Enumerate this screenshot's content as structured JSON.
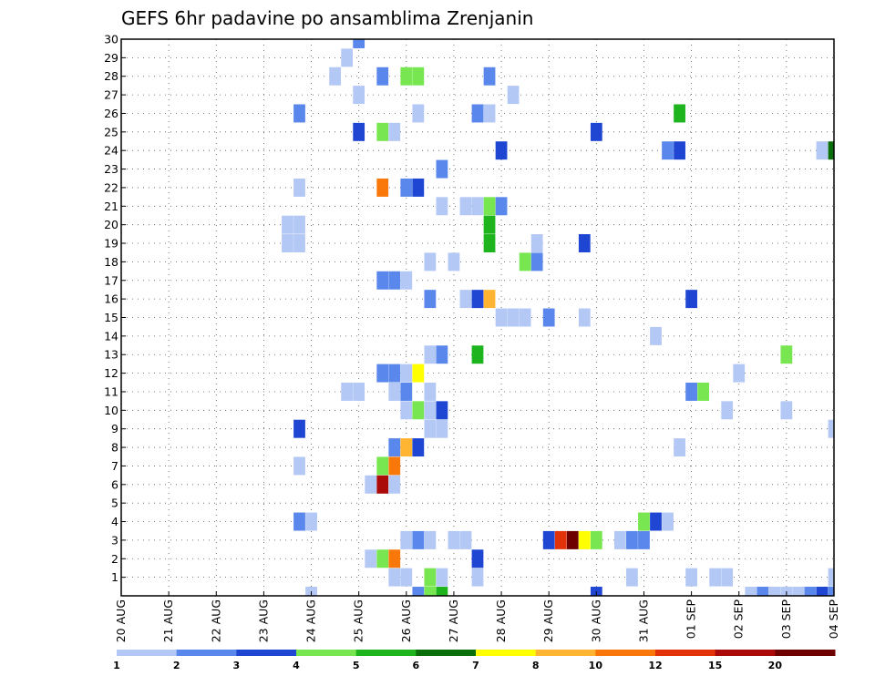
{
  "chart_data": {
    "type": "heatmap",
    "title": "GEFS 6hr padavine po ansamblima Zrenjanin",
    "xlabel": "",
    "ylabel": "",
    "x_ticks": [
      "20 AUG",
      "21 AUG",
      "22 AUG",
      "23 AUG",
      "24 AUG",
      "25 AUG",
      "26 AUG",
      "27 AUG",
      "28 AUG",
      "29 AUG",
      "30 AUG",
      "31 AUG",
      "01 SEP",
      "02 SEP",
      "03 SEP",
      "04 SEP"
    ],
    "y_ticks": [
      1,
      2,
      3,
      4,
      5,
      6,
      7,
      8,
      9,
      10,
      11,
      12,
      13,
      14,
      15,
      16,
      17,
      18,
      19,
      20,
      21,
      22,
      23,
      24,
      25,
      26,
      27,
      28,
      29,
      30
    ],
    "xlim": [
      0,
      60
    ],
    "ylim": [
      0,
      30
    ],
    "x_units": "6-hour steps from 20 AUG 00Z",
    "grid": true,
    "legend": {
      "placement": "bottom",
      "levels": [
        "1",
        "2",
        "3",
        "4",
        "5",
        "6",
        "7",
        "8",
        "10",
        "12",
        "15",
        "20"
      ],
      "colors": [
        "#b4c8f5",
        "#5a87eb",
        "#1e46d2",
        "#78e650",
        "#1eb41e",
        "#0a6e0a",
        "#ffff00",
        "#ffb432",
        "#fa780a",
        "#e1320a",
        "#aa0a0a",
        "#6e0000"
      ]
    },
    "cells": [
      {
        "x": 20,
        "y": 30,
        "c": 1
      },
      {
        "x": 19,
        "y": 29,
        "c": 0
      },
      {
        "x": 18,
        "y": 28,
        "c": 0
      },
      {
        "x": 22,
        "y": 28,
        "c": 1
      },
      {
        "x": 24,
        "y": 28,
        "c": 3
      },
      {
        "x": 25,
        "y": 28,
        "c": 3
      },
      {
        "x": 31,
        "y": 28,
        "c": 1
      },
      {
        "x": 20,
        "y": 27,
        "c": 0
      },
      {
        "x": 33,
        "y": 27,
        "c": 0
      },
      {
        "x": 15,
        "y": 26,
        "c": 1
      },
      {
        "x": 25,
        "y": 26,
        "c": 0
      },
      {
        "x": 30,
        "y": 26,
        "c": 1
      },
      {
        "x": 31,
        "y": 26,
        "c": 0
      },
      {
        "x": 47,
        "y": 26,
        "c": 4
      },
      {
        "x": 20,
        "y": 25,
        "c": 2
      },
      {
        "x": 22,
        "y": 25,
        "c": 3
      },
      {
        "x": 23,
        "y": 25,
        "c": 0
      },
      {
        "x": 40,
        "y": 25,
        "c": 2
      },
      {
        "x": 32,
        "y": 24,
        "c": 2
      },
      {
        "x": 46,
        "y": 24,
        "c": 1
      },
      {
        "x": 47,
        "y": 24,
        "c": 2
      },
      {
        "x": 59,
        "y": 24,
        "c": 0
      },
      {
        "x": 60,
        "y": 24,
        "c": 5
      },
      {
        "x": 27,
        "y": 23,
        "c": 1
      },
      {
        "x": 15,
        "y": 22,
        "c": 0
      },
      {
        "x": 22,
        "y": 22,
        "c": 8
      },
      {
        "x": 24,
        "y": 22,
        "c": 1
      },
      {
        "x": 25,
        "y": 22,
        "c": 2
      },
      {
        "x": 27,
        "y": 21,
        "c": 0
      },
      {
        "x": 29,
        "y": 21,
        "c": 0
      },
      {
        "x": 30,
        "y": 21,
        "c": 0
      },
      {
        "x": 31,
        "y": 21,
        "c": 3
      },
      {
        "x": 32,
        "y": 21,
        "c": 1
      },
      {
        "x": 14,
        "y": 20,
        "c": 0
      },
      {
        "x": 15,
        "y": 20,
        "c": 0
      },
      {
        "x": 31,
        "y": 20,
        "c": 4
      },
      {
        "x": 14,
        "y": 19,
        "c": 0
      },
      {
        "x": 15,
        "y": 19,
        "c": 0
      },
      {
        "x": 31,
        "y": 19,
        "c": 4
      },
      {
        "x": 35,
        "y": 19,
        "c": 0
      },
      {
        "x": 39,
        "y": 19,
        "c": 2
      },
      {
        "x": 26,
        "y": 18,
        "c": 0
      },
      {
        "x": 28,
        "y": 18,
        "c": 0
      },
      {
        "x": 34,
        "y": 18,
        "c": 3
      },
      {
        "x": 35,
        "y": 18,
        "c": 1
      },
      {
        "x": 22,
        "y": 17,
        "c": 1
      },
      {
        "x": 23,
        "y": 17,
        "c": 1
      },
      {
        "x": 24,
        "y": 17,
        "c": 0
      },
      {
        "x": 26,
        "y": 16,
        "c": 1
      },
      {
        "x": 29,
        "y": 16,
        "c": 0
      },
      {
        "x": 30,
        "y": 16,
        "c": 2
      },
      {
        "x": 31,
        "y": 16,
        "c": 7
      },
      {
        "x": 48,
        "y": 16,
        "c": 2
      },
      {
        "x": 32,
        "y": 15,
        "c": 0
      },
      {
        "x": 33,
        "y": 15,
        "c": 0
      },
      {
        "x": 34,
        "y": 15,
        "c": 0
      },
      {
        "x": 36,
        "y": 15,
        "c": 1
      },
      {
        "x": 39,
        "y": 15,
        "c": 0
      },
      {
        "x": 45,
        "y": 14,
        "c": 0
      },
      {
        "x": 26,
        "y": 13,
        "c": 0
      },
      {
        "x": 27,
        "y": 13,
        "c": 1
      },
      {
        "x": 30,
        "y": 13,
        "c": 4
      },
      {
        "x": 56,
        "y": 13,
        "c": 3
      },
      {
        "x": 22,
        "y": 12,
        "c": 1
      },
      {
        "x": 23,
        "y": 12,
        "c": 1
      },
      {
        "x": 24,
        "y": 12,
        "c": 0
      },
      {
        "x": 25,
        "y": 12,
        "c": 6
      },
      {
        "x": 52,
        "y": 12,
        "c": 0
      },
      {
        "x": 19,
        "y": 11,
        "c": 0
      },
      {
        "x": 20,
        "y": 11,
        "c": 0
      },
      {
        "x": 23,
        "y": 11,
        "c": 0
      },
      {
        "x": 24,
        "y": 11,
        "c": 1
      },
      {
        "x": 26,
        "y": 11,
        "c": 0
      },
      {
        "x": 48,
        "y": 11,
        "c": 1
      },
      {
        "x": 49,
        "y": 11,
        "c": 3
      },
      {
        "x": 24,
        "y": 10,
        "c": 0
      },
      {
        "x": 25,
        "y": 10,
        "c": 3
      },
      {
        "x": 26,
        "y": 10,
        "c": 0
      },
      {
        "x": 27,
        "y": 10,
        "c": 2
      },
      {
        "x": 51,
        "y": 10,
        "c": 0
      },
      {
        "x": 56,
        "y": 10,
        "c": 0
      },
      {
        "x": 15,
        "y": 9,
        "c": 2
      },
      {
        "x": 26,
        "y": 9,
        "c": 0
      },
      {
        "x": 27,
        "y": 9,
        "c": 0
      },
      {
        "x": 60,
        "y": 9,
        "c": 0
      },
      {
        "x": 23,
        "y": 8,
        "c": 1
      },
      {
        "x": 24,
        "y": 8,
        "c": 7
      },
      {
        "x": 25,
        "y": 8,
        "c": 2
      },
      {
        "x": 47,
        "y": 8,
        "c": 0
      },
      {
        "x": 15,
        "y": 7,
        "c": 0
      },
      {
        "x": 22,
        "y": 7,
        "c": 3
      },
      {
        "x": 23,
        "y": 7,
        "c": 8
      },
      {
        "x": 21,
        "y": 6,
        "c": 0
      },
      {
        "x": 22,
        "y": 6,
        "c": 10
      },
      {
        "x": 23,
        "y": 6,
        "c": 0
      },
      {
        "x": 15,
        "y": 4,
        "c": 1
      },
      {
        "x": 16,
        "y": 4,
        "c": 0
      },
      {
        "x": 44,
        "y": 4,
        "c": 3
      },
      {
        "x": 45,
        "y": 4,
        "c": 2
      },
      {
        "x": 46,
        "y": 4,
        "c": 0
      },
      {
        "x": 24,
        "y": 3,
        "c": 0
      },
      {
        "x": 25,
        "y": 3,
        "c": 1
      },
      {
        "x": 26,
        "y": 3,
        "c": 0
      },
      {
        "x": 28,
        "y": 3,
        "c": 0
      },
      {
        "x": 29,
        "y": 3,
        "c": 0
      },
      {
        "x": 36,
        "y": 3,
        "c": 2
      },
      {
        "x": 37,
        "y": 3,
        "c": 9
      },
      {
        "x": 38,
        "y": 3,
        "c": 11
      },
      {
        "x": 39,
        "y": 3,
        "c": 6
      },
      {
        "x": 40,
        "y": 3,
        "c": 3
      },
      {
        "x": 42,
        "y": 3,
        "c": 0
      },
      {
        "x": 43,
        "y": 3,
        "c": 1
      },
      {
        "x": 44,
        "y": 3,
        "c": 1
      },
      {
        "x": 21,
        "y": 2,
        "c": 0
      },
      {
        "x": 22,
        "y": 2,
        "c": 3
      },
      {
        "x": 23,
        "y": 2,
        "c": 8
      },
      {
        "x": 30,
        "y": 2,
        "c": 2
      },
      {
        "x": 23,
        "y": 1,
        "c": 0
      },
      {
        "x": 24,
        "y": 1,
        "c": 0
      },
      {
        "x": 26,
        "y": 1,
        "c": 3
      },
      {
        "x": 27,
        "y": 1,
        "c": 0
      },
      {
        "x": 30,
        "y": 1,
        "c": 0
      },
      {
        "x": 43,
        "y": 1,
        "c": 0
      },
      {
        "x": 48,
        "y": 1,
        "c": 0
      },
      {
        "x": 50,
        "y": 1,
        "c": 0
      },
      {
        "x": 51,
        "y": 1,
        "c": 0
      },
      {
        "x": 60,
        "y": 1,
        "c": 0
      },
      {
        "x": 16,
        "y": 0,
        "c": 0
      },
      {
        "x": 25,
        "y": 0,
        "c": 1
      },
      {
        "x": 26,
        "y": 0,
        "c": 3
      },
      {
        "x": 27,
        "y": 0,
        "c": 4
      },
      {
        "x": 40,
        "y": 0,
        "c": 2
      },
      {
        "x": 53,
        "y": 0,
        "c": 0
      },
      {
        "x": 54,
        "y": 0,
        "c": 1
      },
      {
        "x": 55,
        "y": 0,
        "c": 0
      },
      {
        "x": 56,
        "y": 0,
        "c": 0
      },
      {
        "x": 57,
        "y": 0,
        "c": 0
      },
      {
        "x": 58,
        "y": 0,
        "c": 1
      },
      {
        "x": 59,
        "y": 0,
        "c": 2
      },
      {
        "x": 60,
        "y": 0,
        "c": 1
      }
    ]
  }
}
